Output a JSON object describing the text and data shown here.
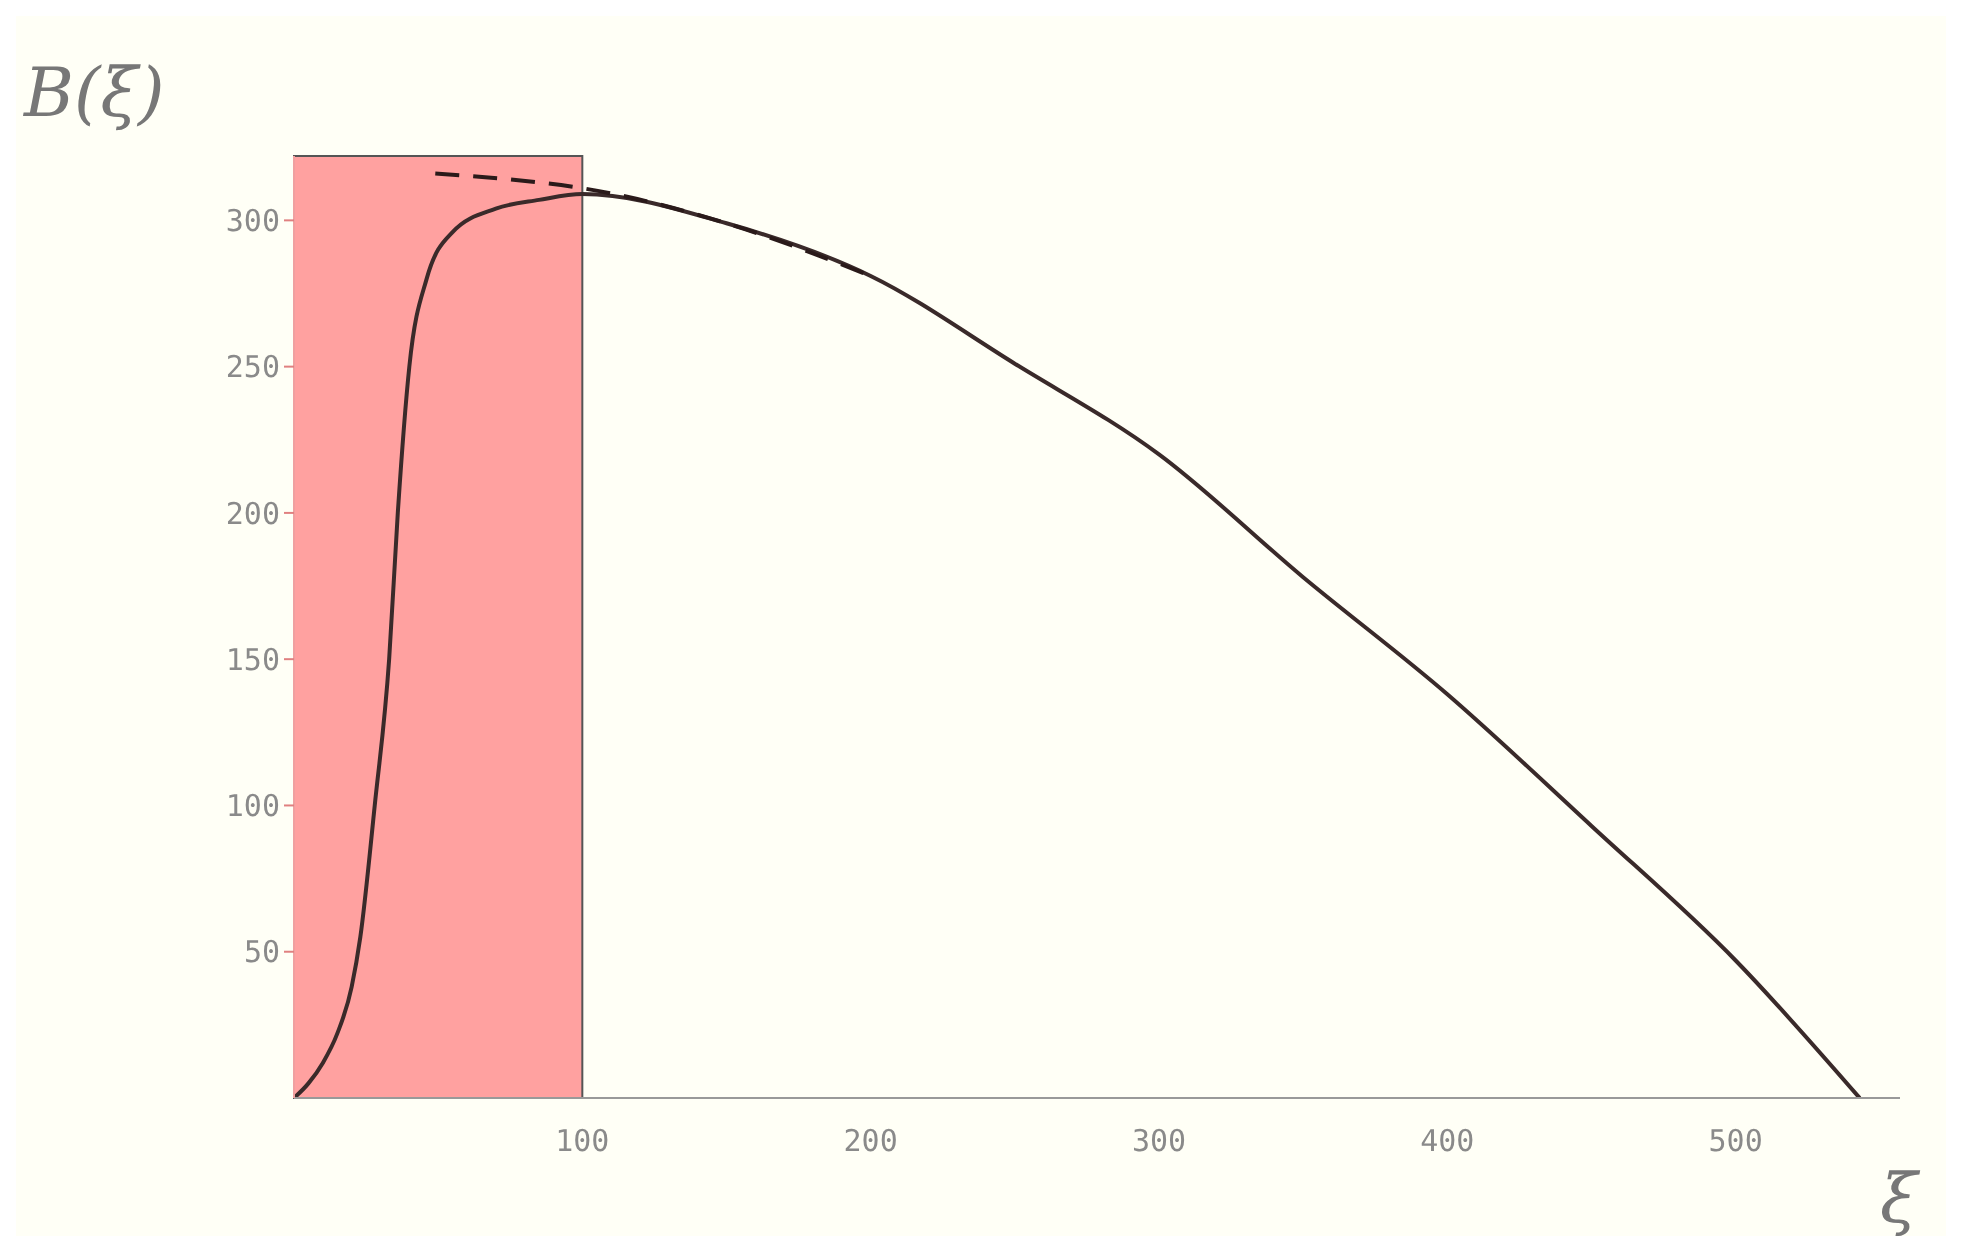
{
  "chart_data": {
    "type": "line",
    "xlabel": "ξ",
    "ylabel": "B(ξ)",
    "xlim": [
      0,
      557
    ],
    "xticks": [
      100,
      200,
      300,
      400,
      500
    ],
    "ylim": [
      0,
      322
    ],
    "yticks": [
      50,
      100,
      150,
      200,
      250,
      300
    ],
    "grid": false,
    "marker": "none",
    "series": [
      {
        "color": "#3a2a2a",
        "line_style": "solid",
        "x": [
          0,
          5,
          10,
          15,
          20,
          23,
          28,
          33,
          36,
          40,
          46,
          55,
          70,
          85,
          100,
          150,
          200,
          250,
          300,
          350,
          400,
          450,
          500,
          543
        ],
        "values": [
          0,
          5,
          12,
          22,
          38,
          55,
          100,
          150,
          200,
          250,
          280,
          296,
          304,
          307,
          309,
          299,
          281,
          251,
          220,
          178,
          138,
          93,
          47,
          0
        ]
      },
      {
        "color": "#2a1a1a",
        "line_style": "dashed",
        "x": [
          49,
          75,
          100,
          150,
          200
        ],
        "values": [
          316,
          314,
          311,
          299,
          281
        ]
      }
    ],
    "bands": [
      {
        "axis": "x",
        "from": 0,
        "to": 100,
        "color": "#ff9090"
      }
    ]
  }
}
